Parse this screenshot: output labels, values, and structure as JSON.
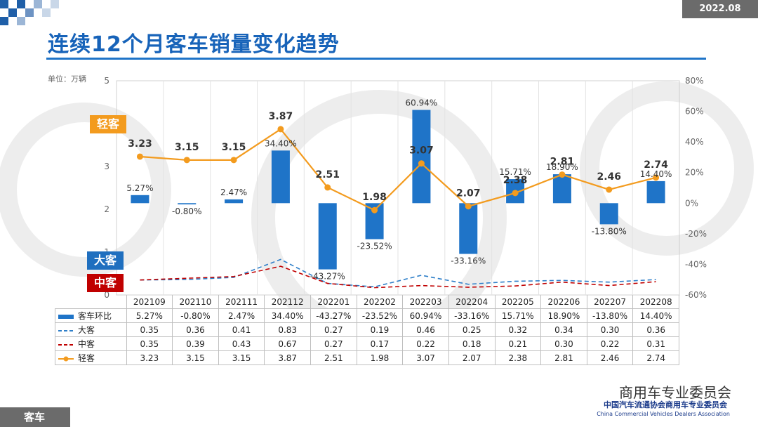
{
  "header": {
    "date": "2022.08",
    "title": "连续12个月客车销量变化趋势",
    "unit": "单位：万辆"
  },
  "tags": {
    "light": "轻客",
    "large": "大客",
    "medium": "中客"
  },
  "footer": {
    "section": "客车",
    "watermark": "商用车专业委员会",
    "org_cn": "中国汽车流通协会商用车专业委员会",
    "org_en": "China Commercial Vehicles Dealers Association"
  },
  "colors": {
    "bar": "#1f74c8",
    "large": "#2e7fc9",
    "medium": "#c00000",
    "light": "#f39b1e",
    "title": "#1763b9"
  },
  "chart_data": {
    "type": "bar+line",
    "categories": [
      "202109",
      "202110",
      "202111",
      "202112",
      "202201",
      "202202",
      "202203",
      "202204",
      "202205",
      "202206",
      "202207",
      "202208"
    ],
    "left_axis": {
      "min": 0,
      "max": 5,
      "ticks": [
        "0",
        "1",
        "2",
        "3",
        "4",
        "5"
      ]
    },
    "right_axis": {
      "min": -60,
      "max": 80,
      "ticks": [
        "-60%",
        "-40%",
        "-20%",
        "0%",
        "20%",
        "40%",
        "60%",
        "80%"
      ]
    },
    "series": [
      {
        "name": "客车环比",
        "type": "bar",
        "axis": "right",
        "values": [
          5.27,
          -0.8,
          2.47,
          34.4,
          -43.27,
          -23.52,
          60.94,
          -33.16,
          15.71,
          18.9,
          -13.8,
          14.4
        ],
        "labels": [
          "5.27%",
          "-0.80%",
          "2.47%",
          "34.40%",
          "-43.27%",
          "-23.52%",
          "60.94%",
          "-33.16%",
          "15.71%",
          "18.90%",
          "-13.80%",
          "14.40%"
        ]
      },
      {
        "name": "大客",
        "type": "line-dashed",
        "axis": "left",
        "values": [
          0.35,
          0.36,
          0.41,
          0.83,
          0.27,
          0.19,
          0.46,
          0.25,
          0.32,
          0.34,
          0.3,
          0.36
        ],
        "labels": [
          "0.35",
          "0.36",
          "0.41",
          "0.83",
          "0.27",
          "0.19",
          "0.46",
          "0.25",
          "0.32",
          "0.34",
          "0.30",
          "0.36"
        ]
      },
      {
        "name": "中客",
        "type": "line-dashed",
        "axis": "left",
        "values": [
          0.35,
          0.39,
          0.43,
          0.67,
          0.27,
          0.17,
          0.22,
          0.18,
          0.21,
          0.3,
          0.22,
          0.31
        ],
        "labels": [
          "0.35",
          "0.39",
          "0.43",
          "0.67",
          "0.27",
          "0.17",
          "0.22",
          "0.18",
          "0.21",
          "0.30",
          "0.22",
          "0.31"
        ]
      },
      {
        "name": "轻客",
        "type": "line-marker",
        "axis": "left",
        "values": [
          3.23,
          3.15,
          3.15,
          3.87,
          2.51,
          1.98,
          3.07,
          2.07,
          2.38,
          2.81,
          2.46,
          2.74
        ],
        "labels": [
          "3.23",
          "3.15",
          "3.15",
          "3.87",
          "2.51",
          "1.98",
          "3.07",
          "2.07",
          "2.38",
          "2.81",
          "2.46",
          "2.74"
        ]
      }
    ]
  }
}
